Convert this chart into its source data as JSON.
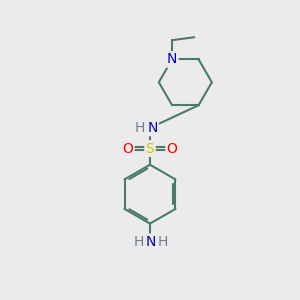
{
  "background_color": "#ebebeb",
  "bond_color": "#4a7a6a",
  "bond_width": 1.5,
  "atom_colors": {
    "N": "#0000cc",
    "S": "#cccc00",
    "O": "#ff0000",
    "H": "#708090"
  },
  "font_size_main": 10,
  "font_size_sub": 8,
  "figsize": [
    3.0,
    3.0
  ],
  "dpi": 100
}
